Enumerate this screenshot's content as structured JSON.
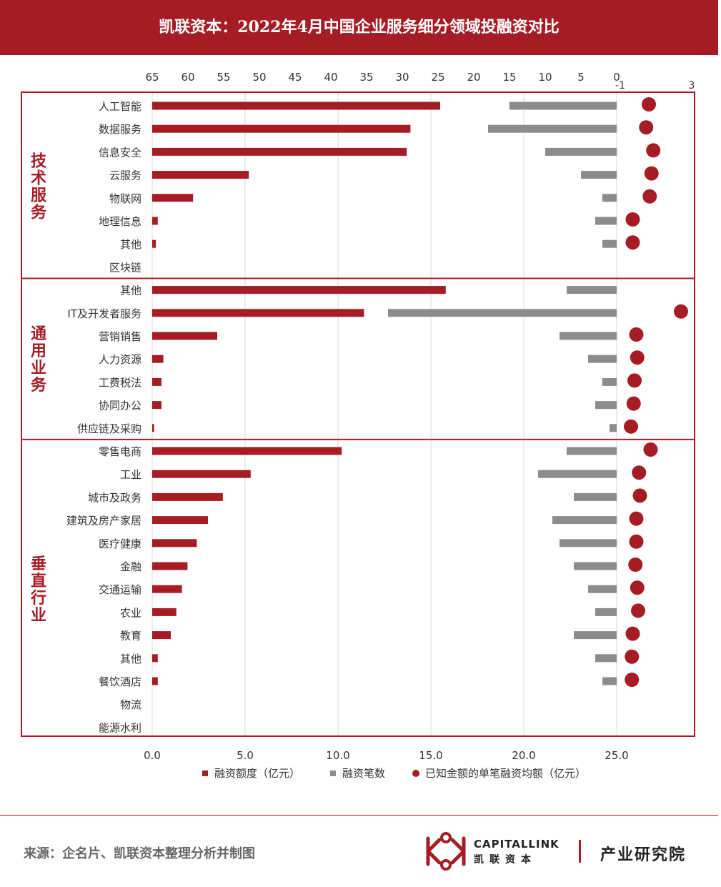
{
  "title": "凯联资本：2022年4月中国企业服务细分领域投融资对比",
  "source": "来源：企名片、凯联资本整理分析并制图",
  "logo": {
    "en": "CAPITALLINK",
    "cn": "凯联资本"
  },
  "institute": "产业研究院",
  "colors": {
    "brand_red": "#a51c24",
    "gray": "#8c8c8c",
    "frame": "#a51c24"
  },
  "chart_data": {
    "type": "bar",
    "legend": [
      {
        "name": "融资额度（亿元）",
        "marker": "square",
        "color": "#a51c24"
      },
      {
        "name": "融资笔数",
        "marker": "square",
        "color": "#8c8c8c"
      },
      {
        "name": "已知金额的单笔融资均额（亿元）",
        "marker": "circle",
        "color": "#a51c24"
      }
    ],
    "axes": {
      "amount": {
        "ticks": [
          "0.0",
          "5.0",
          "10.0",
          "15.0",
          "20.0",
          "25.0"
        ],
        "range": [
          0,
          29
        ],
        "position": "bottom"
      },
      "count": {
        "ticks": [
          "65",
          "60",
          "55",
          "50",
          "45",
          "40",
          "35",
          "30",
          "25",
          "20",
          "15",
          "10",
          "5",
          "0"
        ],
        "range": [
          0,
          65
        ],
        "reversed": true,
        "position": "top"
      },
      "avg": {
        "ticks": [
          "-1",
          "3"
        ],
        "range": [
          -1,
          3
        ],
        "position": "top-right"
      }
    },
    "groups": [
      {
        "name": "技术服务",
        "items": [
          {
            "label": "人工智能",
            "amount": 15.5,
            "count": 15,
            "avg": 0.6
          },
          {
            "label": "数据服务",
            "amount": 13.9,
            "count": 18,
            "avg": 0.45
          },
          {
            "label": "信息安全",
            "amount": 13.7,
            "count": 10,
            "avg": 0.85
          },
          {
            "label": "云服务",
            "amount": 5.2,
            "count": 5,
            "avg": 0.75
          },
          {
            "label": "物联网",
            "amount": 2.2,
            "count": 2,
            "avg": 0.65
          },
          {
            "label": "地理信息",
            "amount": 0.3,
            "count": 3,
            "avg": -0.3
          },
          {
            "label": "其他",
            "amount": 0.2,
            "count": 2,
            "avg": -0.3
          },
          {
            "label": "区块链",
            "amount": 0,
            "count": 0,
            "avg": null
          }
        ]
      },
      {
        "name": "通用业务",
        "items": [
          {
            "label": "其他",
            "amount": 15.8,
            "count": 7,
            "avg": null
          },
          {
            "label": "IT及开发者服务",
            "amount": 11.4,
            "count": 32,
            "avg": 2.4
          },
          {
            "label": "营销销售",
            "amount": 3.5,
            "count": 8,
            "avg": -0.1
          },
          {
            "label": "人力资源",
            "amount": 0.6,
            "count": 4,
            "avg": -0.05
          },
          {
            "label": "工费税法",
            "amount": 0.5,
            "count": 2,
            "avg": -0.2
          },
          {
            "label": "协同办公",
            "amount": 0.5,
            "count": 3,
            "avg": -0.25
          },
          {
            "label": "供应链及采购",
            "amount": 0.1,
            "count": 1,
            "avg": -0.4
          }
        ]
      },
      {
        "name": "垂直行业",
        "items": [
          {
            "label": "零售电商",
            "amount": 10.2,
            "count": 7,
            "avg": 0.7
          },
          {
            "label": "工业",
            "amount": 5.3,
            "count": 11,
            "avg": 0.05
          },
          {
            "label": "城市及政务",
            "amount": 3.8,
            "count": 6,
            "avg": 0.1
          },
          {
            "label": "建筑及房产家居",
            "amount": 3.0,
            "count": 9,
            "avg": -0.1
          },
          {
            "label": "医疗健康",
            "amount": 2.4,
            "count": 8,
            "avg": -0.1
          },
          {
            "label": "金融",
            "amount": 1.9,
            "count": 6,
            "avg": -0.15
          },
          {
            "label": "交通运输",
            "amount": 1.6,
            "count": 4,
            "avg": -0.05
          },
          {
            "label": "农业",
            "amount": 1.3,
            "count": 3,
            "avg": 0.0
          },
          {
            "label": "教育",
            "amount": 1.0,
            "count": 6,
            "avg": -0.3
          },
          {
            "label": "其他",
            "amount": 0.3,
            "count": 3,
            "avg": -0.35
          },
          {
            "label": "餐饮酒店",
            "amount": 0.3,
            "count": 2,
            "avg": -0.35
          },
          {
            "label": "物流",
            "amount": 0,
            "count": 0,
            "avg": null
          },
          {
            "label": "能源水利",
            "amount": 0,
            "count": 0,
            "avg": null
          }
        ]
      }
    ]
  }
}
